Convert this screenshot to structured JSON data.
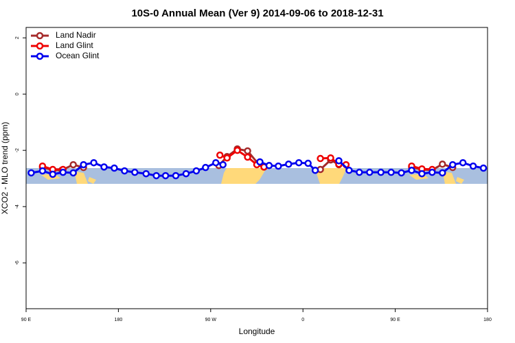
{
  "chart_data": {
    "type": "line",
    "title": "10S-0 Annual Mean (Ver 9)   2014-09-06 to 2018-12-31",
    "xlabel": "Longitude",
    "ylabel": "XCO2 - MLO trend (ppm)",
    "xlim": [
      90,
      540
    ],
    "ylim": [
      -7.63,
      2.37
    ],
    "xticks": [
      {
        "value": 90,
        "label": "90 E"
      },
      180,
      {
        "value": 270,
        "label": "90 W"
      },
      {
        "value": 360,
        "label": "0"
      },
      {
        "value": 450,
        "label": "90 E"
      },
      {
        "value": 540,
        "label": "180"
      }
    ],
    "yticks": [
      2,
      0,
      -2,
      -4,
      -6
    ],
    "legend": "top-left",
    "series": [
      {
        "name": "Land Nadir",
        "color": "#a52a2a",
        "x": [
          106,
          116,
          125,
          136,
          146,
          200,
          278,
          286,
          296,
          306,
          316,
          322,
          350,
          377,
          387,
          395,
          430,
          466,
          476,
          486,
          496,
          506
        ],
        "values": [
          -2.6,
          -2.7,
          -2.7,
          -2.51,
          -2.61,
          null,
          -2.54,
          -2.22,
          -1.95,
          -2.02,
          -2.46,
          -2.59,
          null,
          -2.68,
          -2.34,
          -2.51,
          null,
          -2.6,
          -2.68,
          -2.7,
          -2.49,
          -2.61
        ]
      },
      {
        "name": "Land Glint",
        "color": "#ee0000",
        "x": [
          106,
          116,
          126,
          200,
          279,
          286,
          296,
          306,
          315,
          322,
          350,
          377,
          387,
          395,
          402,
          430,
          466,
          476,
          486
        ],
        "values": [
          -2.56,
          -2.68,
          -2.68,
          null,
          -2.17,
          -2.27,
          -2.0,
          -2.24,
          -2.51,
          -2.59,
          null,
          -2.29,
          -2.27,
          -2.49,
          -2.51,
          null,
          -2.56,
          -2.66,
          -2.68
        ]
      },
      {
        "name": "Ocean Glint",
        "color": "#0000ee",
        "x": [
          95,
          106,
          116,
          126,
          136,
          146,
          156,
          166,
          176,
          186,
          196,
          207,
          217,
          226,
          236,
          246,
          256,
          265,
          275,
          282,
          300,
          318,
          327,
          336,
          346,
          356,
          365,
          372,
          384,
          395,
          405,
          415,
          425,
          436,
          446,
          456,
          466,
          476,
          486,
          496,
          506,
          516,
          526,
          536
        ],
        "values": [
          -2.8,
          -2.73,
          -2.85,
          -2.78,
          -2.8,
          -2.51,
          -2.44,
          -2.59,
          -2.63,
          -2.73,
          -2.78,
          -2.83,
          -2.9,
          -2.9,
          -2.9,
          -2.83,
          -2.73,
          -2.61,
          -2.44,
          -2.51,
          null,
          -2.41,
          -2.54,
          -2.56,
          -2.49,
          -2.44,
          -2.46,
          -2.71,
          null,
          -2.37,
          -2.71,
          -2.78,
          -2.78,
          -2.78,
          -2.78,
          -2.8,
          -2.71,
          -2.83,
          -2.78,
          -2.8,
          -2.51,
          -2.44,
          -2.56,
          -2.63
        ]
      }
    ]
  }
}
